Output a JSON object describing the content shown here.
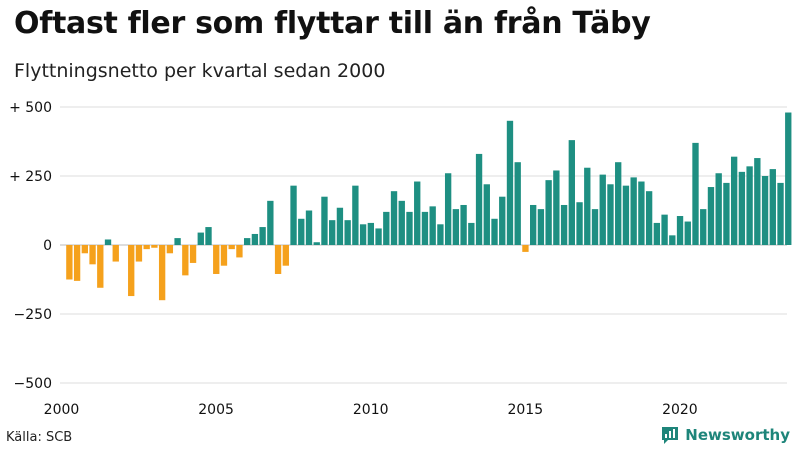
{
  "title": "Oftast fler som flyttar till än från Täby",
  "subtitle": "Flyttningsnetto per kvartal sedan 2000",
  "source": "Källa: SCB",
  "brand": "Newsworthy",
  "colors": {
    "positive": "#1e8f82",
    "negative": "#f5a11c",
    "grid": "#dddddd",
    "brand": "#1e857a"
  },
  "chart_data": {
    "type": "bar",
    "title": "Oftast fler som flyttar till än från Täby",
    "subtitle": "Flyttningsnetto per kvartal sedan 2000",
    "xlabel": "",
    "ylabel": "",
    "ylim": [
      -500,
      500
    ],
    "y_ticks": [
      500,
      250,
      0,
      -250,
      -500
    ],
    "y_tick_labels": [
      "+ 500",
      "+ 250",
      "0",
      "−250",
      "−500"
    ],
    "x_ticks": [
      2000,
      2005,
      2010,
      2015,
      2020
    ],
    "x_tick_labels": [
      "2000",
      "2005",
      "2010",
      "2015",
      "2020"
    ],
    "grid": true,
    "first_period": "2000 Q1",
    "last_period": "2023 Q2",
    "values": [
      -125,
      -130,
      -30,
      -70,
      -155,
      20,
      -60,
      0,
      -185,
      -60,
      -15,
      -10,
      -200,
      -30,
      25,
      -110,
      -65,
      45,
      65,
      -105,
      -75,
      -15,
      -45,
      25,
      40,
      65,
      160,
      -105,
      -75,
      215,
      95,
      125,
      10,
      175,
      90,
      135,
      90,
      215,
      75,
      80,
      60,
      120,
      195,
      160,
      120,
      230,
      120,
      140,
      75,
      260,
      130,
      145,
      80,
      330,
      220,
      95,
      175,
      450,
      300,
      -25,
      145,
      130,
      235,
      270,
      145,
      380,
      155,
      280,
      130,
      255,
      220,
      300,
      215,
      245,
      230,
      195,
      80,
      110,
      35,
      105,
      85,
      370,
      130,
      210,
      260,
      225,
      320,
      265,
      285,
      315,
      250,
      275,
      225,
      480
    ]
  }
}
